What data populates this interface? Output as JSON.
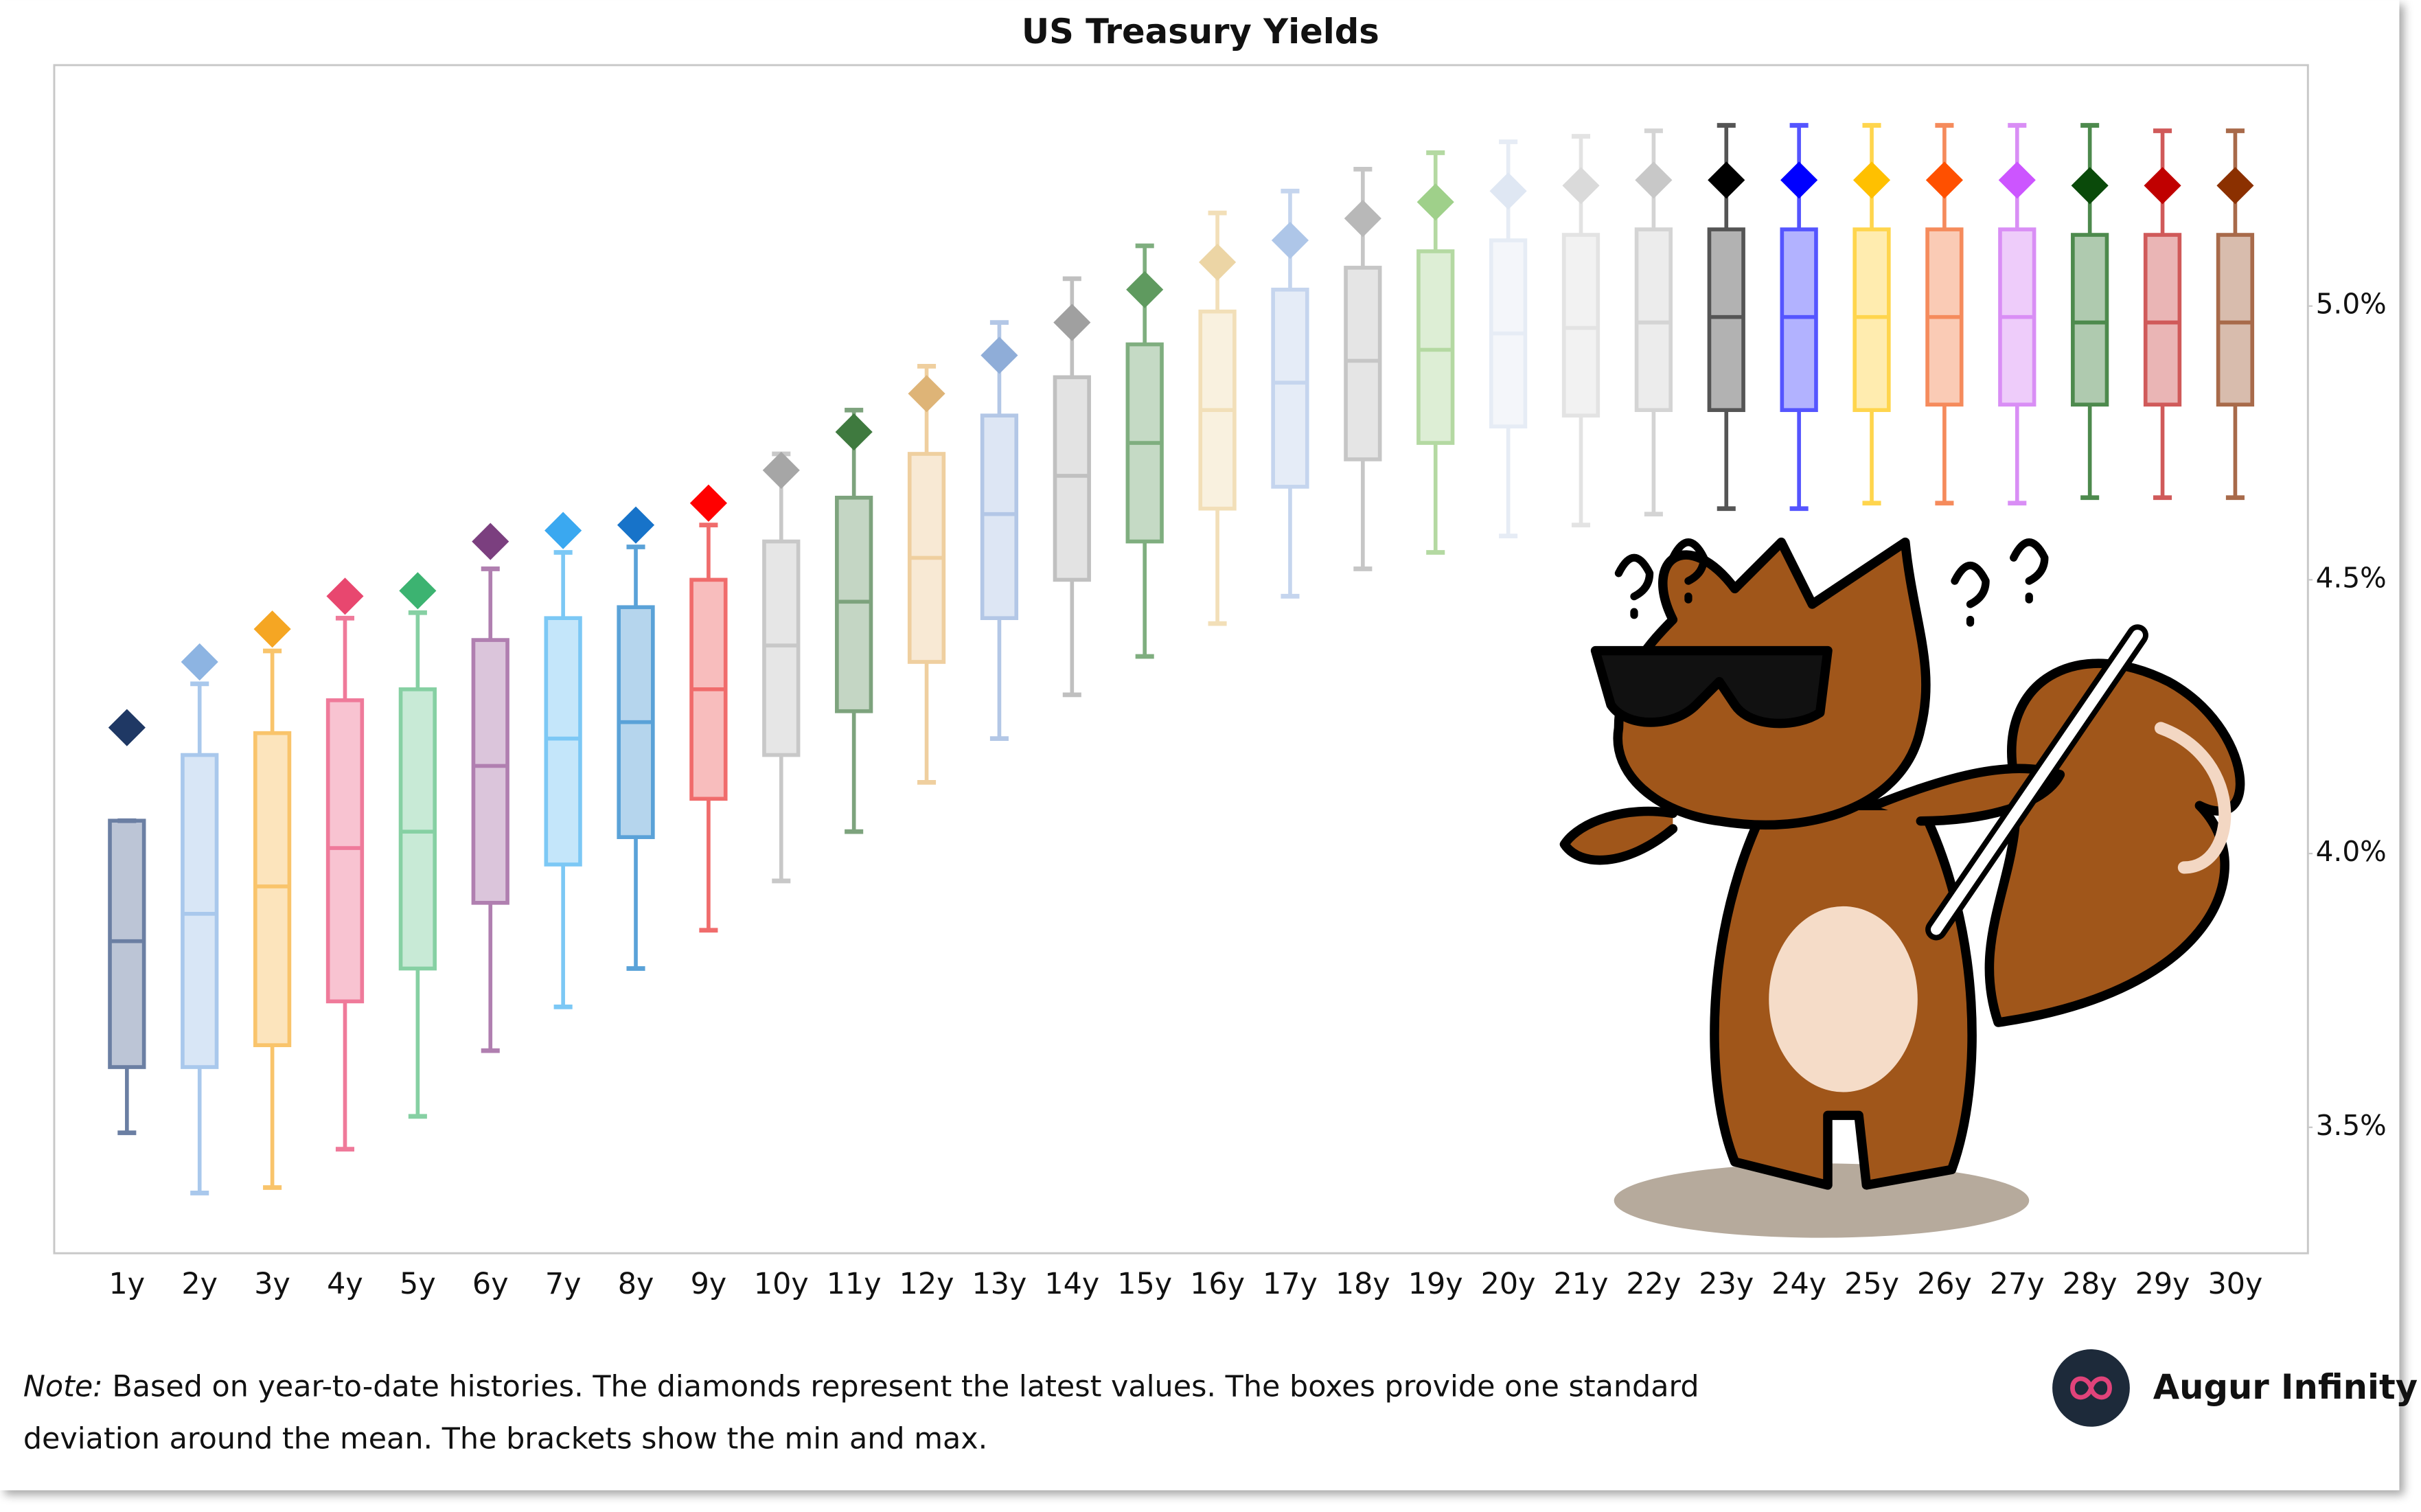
{
  "chart_data": {
    "type": "box",
    "title": "US Treasury Yields",
    "categories": [
      "1y",
      "2y",
      "3y",
      "4y",
      "5y",
      "6y",
      "7y",
      "8y",
      "9y",
      "10y",
      "11y",
      "12y",
      "13y",
      "14y",
      "15y",
      "16y",
      "17y",
      "18y",
      "19y",
      "20y",
      "21y",
      "22y",
      "23y",
      "24y",
      "25y",
      "26y",
      "27y",
      "28y",
      "29y",
      "30y"
    ],
    "min": [
      3.49,
      3.38,
      3.39,
      3.46,
      3.52,
      3.64,
      3.72,
      3.79,
      3.86,
      3.95,
      4.04,
      4.13,
      4.21,
      4.29,
      4.36,
      4.42,
      4.47,
      4.52,
      4.55,
      4.58,
      4.6,
      4.62,
      4.63,
      4.63,
      4.64,
      4.64,
      4.64,
      4.65,
      4.65,
      4.65
    ],
    "low": [
      3.61,
      3.61,
      3.65,
      3.73,
      3.79,
      3.91,
      3.98,
      4.03,
      4.1,
      4.18,
      4.26,
      4.35,
      4.43,
      4.5,
      4.57,
      4.63,
      4.67,
      4.72,
      4.75,
      4.78,
      4.8,
      4.81,
      4.81,
      4.81,
      4.81,
      4.82,
      4.82,
      4.82,
      4.82,
      4.82
    ],
    "mean": [
      3.84,
      3.89,
      3.94,
      4.01,
      4.04,
      4.16,
      4.21,
      4.24,
      4.3,
      4.38,
      4.46,
      4.54,
      4.62,
      4.69,
      4.75,
      4.81,
      4.86,
      4.9,
      4.92,
      4.95,
      4.96,
      4.97,
      4.98,
      4.98,
      4.98,
      4.98,
      4.98,
      4.97,
      4.97,
      4.97
    ],
    "high": [
      4.06,
      4.18,
      4.22,
      4.28,
      4.3,
      4.39,
      4.43,
      4.45,
      4.5,
      4.57,
      4.65,
      4.73,
      4.8,
      4.87,
      4.93,
      4.99,
      5.03,
      5.07,
      5.1,
      5.12,
      5.13,
      5.14,
      5.14,
      5.14,
      5.14,
      5.14,
      5.14,
      5.13,
      5.13,
      5.13
    ],
    "max": [
      4.06,
      4.31,
      4.37,
      4.43,
      4.44,
      4.52,
      4.55,
      4.56,
      4.6,
      4.73,
      4.81,
      4.89,
      4.97,
      5.05,
      5.11,
      5.17,
      5.21,
      5.25,
      5.28,
      5.3,
      5.31,
      5.32,
      5.33,
      5.33,
      5.33,
      5.33,
      5.33,
      5.33,
      5.32,
      5.32
    ],
    "latest": [
      4.23,
      4.35,
      4.41,
      4.47,
      4.48,
      4.57,
      4.59,
      4.6,
      4.64,
      4.7,
      4.77,
      4.84,
      4.91,
      4.97,
      5.03,
      5.08,
      5.12,
      5.16,
      5.19,
      5.21,
      5.22,
      5.23,
      5.23,
      5.23,
      5.23,
      5.23,
      5.23,
      5.22,
      5.22,
      5.22
    ],
    "colors": [
      "#6b7fa3",
      "#a9c8ec",
      "#f9c46b",
      "#ef7a9a",
      "#86d0a3",
      "#b07fb0",
      "#7cc8f5",
      "#5aa2d8",
      "#f06c6c",
      "#c8c8c8",
      "#7da37d",
      "#efcf9f",
      "#b3c7e6",
      "#c0c0c0",
      "#7fae7f",
      "#f2dfb8",
      "#c5d5ee",
      "#c6c6c6",
      "#b4d9a2",
      "#e6ecf5",
      "#e3e3e3",
      "#d4d4d4",
      "#555555",
      "#5555ff",
      "#ffd54d",
      "#f58b5c",
      "#d98ef5",
      "#4d8a4d",
      "#d05a5a",
      "#a86a4a"
    ],
    "latest_colors": [
      "#1f3864",
      "#8db4e2",
      "#f5a623",
      "#e8476f",
      "#3cb371",
      "#7b3f7f",
      "#3aa8f0",
      "#1773c9",
      "#ff0000",
      "#a6a6a6",
      "#3f7a3f",
      "#deb477",
      "#8fadd8",
      "#a0a0a0",
      "#5f9a5f",
      "#ecd5a5",
      "#aec6e8",
      "#b8b8b8",
      "#9fd08a",
      "#dfe7f3",
      "#dadada",
      "#c8c8c8",
      "#000000",
      "#0000ff",
      "#ffc000",
      "#ff5000",
      "#cc55ff",
      "#0a4a0a",
      "#c00000",
      "#8b3000"
    ],
    "ylim": [
      3.27,
      5.44
    ],
    "yticks": [
      {
        "value": 3.5,
        "label": "3.5%"
      },
      {
        "value": 4.0,
        "label": "4.0%"
      },
      {
        "value": 4.5,
        "label": "4.5%"
      },
      {
        "value": 5.0,
        "label": "5.0%"
      }
    ],
    "y_axis_side": "right",
    "grid": false
  },
  "note_label": "Note:",
  "note_lines": [
    "Based on year-to-date histories. The diamonds represent the latest values. The boxes provide one standard",
    "deviation around the mean. The brackets show the min and max."
  ],
  "brand": "Augur Infinity"
}
